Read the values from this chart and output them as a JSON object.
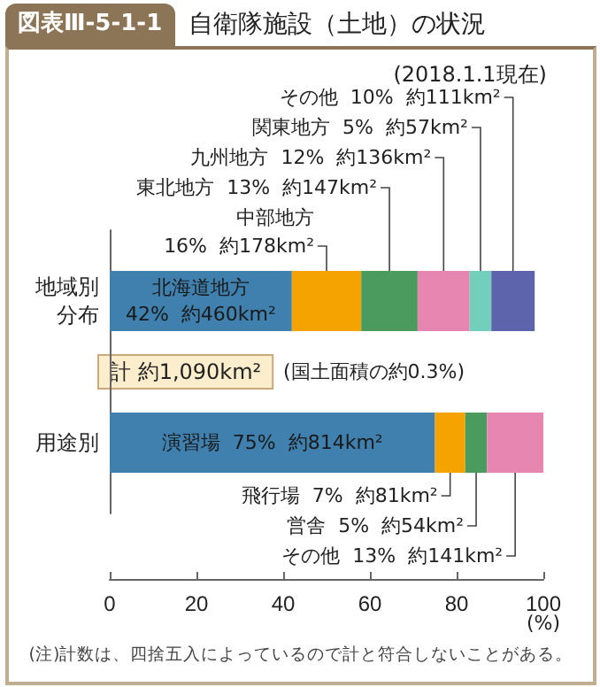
{
  "chart_data": {
    "type": "bar",
    "orientation": "horizontal",
    "stacked": true,
    "title": "自衛隊施設（土地）の状況",
    "xlabel": "(%)",
    "categories": [
      "地域別分布",
      "用途別"
    ],
    "xlim": [
      0,
      100
    ],
    "xticks": [
      0,
      20,
      40,
      60,
      80,
      100
    ],
    "series": [
      {
        "color": "#3f80ae",
        "values": [
          42,
          75
        ],
        "value_labels": [
          "北海道地方\n42%  約460km²",
          "演習場  75%  約814km²"
        ]
      },
      {
        "color": "#f4a300",
        "values": [
          16,
          7
        ],
        "value_labels": [
          "中部地方\n16%  約178km²",
          "飛行場  7%  約81km²"
        ]
      },
      {
        "color": "#4b9b5f",
        "values": [
          13,
          5
        ],
        "value_labels": [
          "東北地方  13%  約147km²",
          "営舎  5%  約54km²"
        ]
      },
      {
        "color": "#e886b2",
        "values": [
          12,
          13
        ],
        "value_labels": [
          "九州地方  12%  約136km²",
          "その他  13%  約141km²"
        ]
      },
      {
        "color": "#72cfbb",
        "values": [
          5,
          null
        ],
        "value_labels": [
          "関東地方  5%  約57km²",
          null
        ]
      },
      {
        "color": "#5d64ab",
        "values": [
          10,
          null
        ],
        "value_labels": [
          "その他  10%  約111km²",
          null
        ]
      }
    ],
    "annotations": [
      "図表Ⅲ-5-1-1",
      "(2018.1.1現在)",
      "計 約1,090km²",
      "(国土面積の約0.3%)",
      "(注)計数は、四捨五入によっているので計と符合しないことがある。"
    ]
  }
}
